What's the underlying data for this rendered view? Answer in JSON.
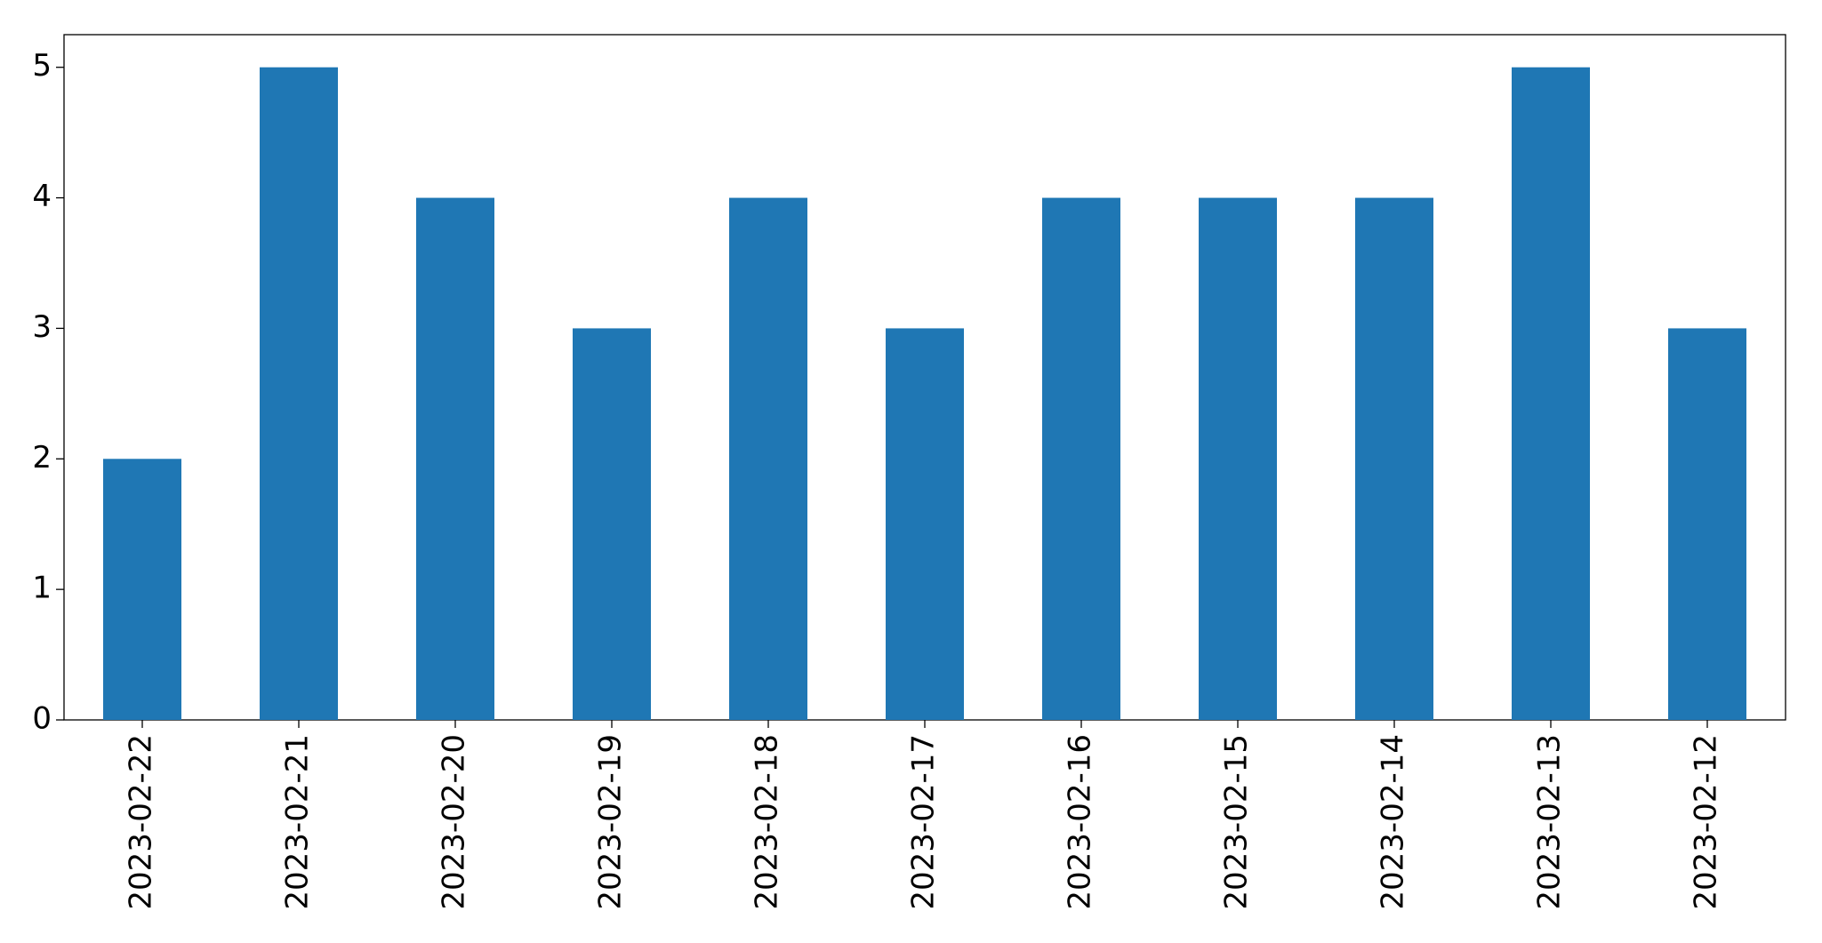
{
  "chart_data": {
    "type": "bar",
    "categories": [
      "2023-02-22",
      "2023-02-21",
      "2023-02-20",
      "2023-02-19",
      "2023-02-18",
      "2023-02-17",
      "2023-02-16",
      "2023-02-15",
      "2023-02-14",
      "2023-02-13",
      "2023-02-12"
    ],
    "values": [
      2,
      5,
      4,
      3,
      4,
      3,
      4,
      4,
      4,
      5,
      3
    ],
    "color": "#1f77b4",
    "ylim": [
      0,
      5.25
    ],
    "yticks": [
      0,
      1,
      2,
      3,
      4,
      5
    ],
    "grid": false
  }
}
